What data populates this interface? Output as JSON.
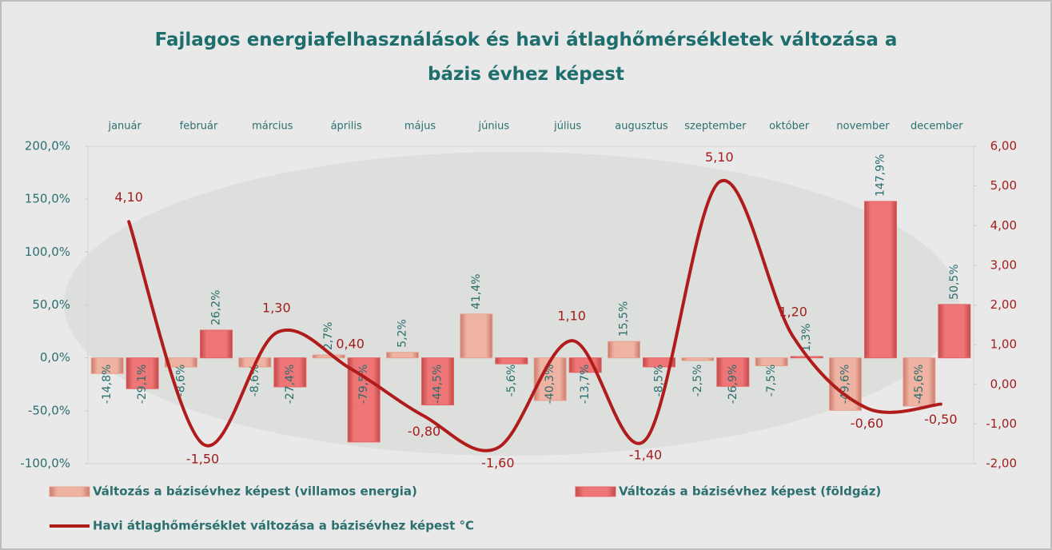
{
  "chart_data": {
    "type": "bar-line",
    "title": "Fajlagos energiafelhasználások és havi átlaghőmérsékletek  változása a bázis évhez képest",
    "categories": [
      "január",
      "február",
      "március",
      "április",
      "május",
      "június",
      "július",
      "augusztus",
      "szeptember",
      "október",
      "november",
      "december"
    ],
    "series": [
      {
        "name": "Változás a bázisévhez képest (villamos energia)",
        "type": "bar",
        "color": "#e9a08e",
        "values": [
          -14.8,
          -8.6,
          -8.6,
          2.7,
          5.2,
          41.4,
          -40.3,
          15.5,
          -2.5,
          -7.5,
          -49.6,
          -45.6
        ],
        "value_labels": [
          "-14,8%",
          "-8,6%",
          "-8,6%",
          "2,7%",
          "5,2%",
          "41,4%",
          "-40,3%",
          "15,5%",
          "-2,5%",
          "-7,5%",
          "-49,6%",
          "-45,6%"
        ]
      },
      {
        "name": "Változás a bázisévhez képest (földgáz)",
        "type": "bar",
        "color": "#e46262",
        "values": [
          -29.1,
          26.2,
          -27.4,
          -79.5,
          -44.5,
          -5.6,
          -13.7,
          -8.5,
          -26.9,
          1.3,
          147.9,
          50.5
        ],
        "value_labels": [
          "-29,1%",
          "26,2%",
          "-27,4%",
          "-79,5%",
          "-44,5%",
          "-5,6%",
          "-13,7%",
          "-8,5%",
          "-26,9%",
          "1,3%",
          "147,9%",
          "50,5%"
        ]
      },
      {
        "name": "Havi átlaghőmérséklet változása a bázisévhez képest °C",
        "type": "line",
        "axis": "y2",
        "color": "#b01c1c",
        "values": [
          4.1,
          -1.5,
          1.3,
          0.4,
          -0.8,
          -1.6,
          1.1,
          -1.4,
          5.1,
          1.2,
          -0.6,
          -0.5
        ],
        "value_labels": [
          "4,10",
          "-1,50",
          "1,30",
          "0,40",
          "-0,80",
          "-1,60",
          "1,10",
          "-1,40",
          "5,10",
          "1,20",
          "-0,60",
          "-0,50"
        ]
      }
    ],
    "ylim": [
      -100,
      200
    ],
    "yticks": [
      {
        "value": -100,
        "label": "-100,0%"
      },
      {
        "value": -50,
        "label": "-50,0%"
      },
      {
        "value": 0,
        "label": "0,0%"
      },
      {
        "value": 50,
        "label": "50,0%"
      },
      {
        "value": 100,
        "label": "100,0%"
      },
      {
        "value": 150,
        "label": "150,0%"
      },
      {
        "value": 200,
        "label": "200,0%"
      }
    ],
    "y2lim": [
      -2,
      6
    ],
    "y2ticks": [
      {
        "value": -2,
        "label": "-2,00"
      },
      {
        "value": -1,
        "label": "-1,00"
      },
      {
        "value": 0,
        "label": "0,00"
      },
      {
        "value": 1,
        "label": "1,00"
      },
      {
        "value": 2,
        "label": "2,00"
      },
      {
        "value": 3,
        "label": "3,00"
      },
      {
        "value": 4,
        "label": "4,00"
      },
      {
        "value": 5,
        "label": "5,00"
      },
      {
        "value": 6,
        "label": "6,00"
      }
    ]
  }
}
